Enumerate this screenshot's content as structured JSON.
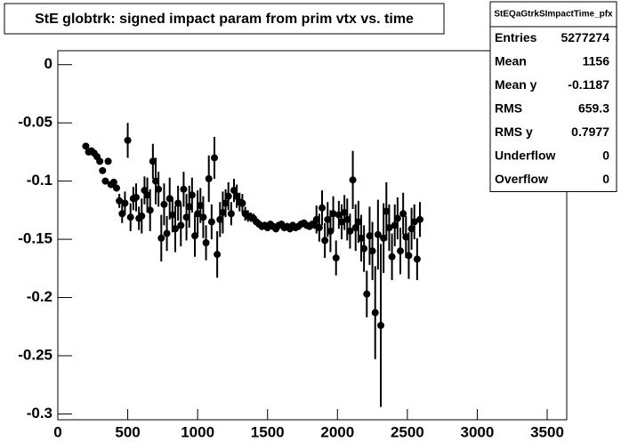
{
  "chart_data": {
    "type": "scatter",
    "title": "StE globtrk: signed impact param from prim vtx vs. time",
    "color": "#000000",
    "xlim": [
      0,
      3640
    ],
    "ylim": [
      -0.305,
      0.012
    ],
    "xticks": [
      0,
      500,
      1000,
      1500,
      2000,
      2500,
      3000,
      3500
    ],
    "yticks": [
      0,
      -0.05,
      -0.1,
      -0.15,
      -0.2,
      -0.25,
      -0.3
    ],
    "x": [
      200,
      220,
      240,
      260,
      280,
      300,
      320,
      340,
      360,
      380,
      400,
      420,
      440,
      460,
      480,
      500,
      520,
      540,
      560,
      580,
      600,
      620,
      640,
      660,
      680,
      700,
      720,
      740,
      760,
      780,
      800,
      820,
      840,
      860,
      880,
      900,
      920,
      940,
      960,
      980,
      1000,
      1020,
      1040,
      1060,
      1080,
      1100,
      1120,
      1140,
      1160,
      1180,
      1200,
      1220,
      1240,
      1260,
      1280,
      1300,
      1320,
      1340,
      1360,
      1380,
      1400,
      1420,
      1440,
      1460,
      1480,
      1500,
      1520,
      1540,
      1560,
      1580,
      1600,
      1620,
      1640,
      1660,
      1680,
      1700,
      1720,
      1740,
      1760,
      1780,
      1800,
      1820,
      1840,
      1850,
      1870,
      1890,
      1910,
      1930,
      1950,
      1970,
      1990,
      2010,
      2030,
      2050,
      2070,
      2090,
      2110,
      2130,
      2150,
      2170,
      2190,
      2210,
      2230,
      2250,
      2270,
      2290,
      2310,
      2330,
      2350,
      2370,
      2390,
      2410,
      2430,
      2450,
      2470,
      2490,
      2510,
      2530,
      2550,
      2570,
      2590
    ],
    "values": [
      -0.07,
      -0.075,
      -0.074,
      -0.076,
      -0.079,
      -0.083,
      -0.091,
      -0.1,
      -0.083,
      -0.103,
      -0.101,
      -0.106,
      -0.117,
      -0.128,
      -0.119,
      -0.065,
      -0.131,
      -0.115,
      -0.114,
      -0.132,
      -0.13,
      -0.108,
      -0.112,
      -0.125,
      -0.083,
      -0.1,
      -0.107,
      -0.149,
      -0.12,
      -0.145,
      -0.115,
      -0.129,
      -0.141,
      -0.119,
      -0.138,
      -0.107,
      -0.131,
      -0.122,
      -0.112,
      -0.147,
      -0.128,
      -0.121,
      -0.131,
      -0.153,
      -0.098,
      -0.135,
      -0.08,
      -0.163,
      -0.133,
      -0.127,
      -0.119,
      -0.113,
      -0.128,
      -0.108,
      -0.113,
      -0.118,
      -0.119,
      -0.128,
      -0.13,
      -0.131,
      -0.132,
      -0.135,
      -0.137,
      -0.139,
      -0.138,
      -0.14,
      -0.137,
      -0.139,
      -0.141,
      -0.138,
      -0.137,
      -0.14,
      -0.139,
      -0.141,
      -0.138,
      -0.14,
      -0.139,
      -0.137,
      -0.136,
      -0.138,
      -0.139,
      -0.137,
      -0.138,
      -0.133,
      -0.14,
      -0.123,
      -0.151,
      -0.133,
      -0.143,
      -0.128,
      -0.166,
      -0.129,
      -0.135,
      -0.127,
      -0.133,
      -0.143,
      -0.099,
      -0.14,
      -0.135,
      -0.149,
      -0.158,
      -0.197,
      -0.147,
      -0.16,
      -0.213,
      -0.146,
      -0.224,
      -0.149,
      -0.126,
      -0.14,
      -0.165,
      -0.138,
      -0.132,
      -0.16,
      -0.128,
      -0.148,
      -0.164,
      -0.141,
      -0.135,
      -0.167,
      -0.133
    ],
    "errors": [
      0.002,
      0.002,
      0.002,
      0.002,
      0.002,
      0.002,
      0.002,
      0.002,
      0.002,
      0.002,
      0.002,
      0.002,
      0.006,
      0.008,
      0.01,
      0.015,
      0.012,
      0.01,
      0.012,
      0.01,
      0.015,
      0.012,
      0.015,
      0.018,
      0.015,
      0.02,
      0.015,
      0.02,
      0.018,
      0.015,
      0.018,
      0.015,
      0.02,
      0.015,
      0.018,
      0.015,
      0.02,
      0.018,
      0.015,
      0.018,
      0.02,
      0.015,
      0.018,
      0.015,
      0.02,
      0.015,
      0.018,
      0.02,
      0.015,
      0.018,
      0.012,
      0.012,
      0.01,
      0.01,
      0.01,
      0.008,
      0.008,
      0.006,
      0.005,
      0.004,
      0.004,
      0.003,
      0.003,
      0.003,
      0.003,
      0.003,
      0.003,
      0.003,
      0.003,
      0.003,
      0.003,
      0.003,
      0.003,
      0.003,
      0.003,
      0.003,
      0.003,
      0.003,
      0.003,
      0.003,
      0.003,
      0.003,
      0.003,
      0.012,
      0.012,
      0.015,
      0.015,
      0.015,
      0.018,
      0.015,
      0.015,
      0.012,
      0.015,
      0.015,
      0.018,
      0.015,
      0.025,
      0.02,
      0.018,
      0.02,
      0.02,
      0.02,
      0.025,
      0.025,
      0.04,
      0.03,
      0.07,
      0.03,
      0.025,
      0.02,
      0.02,
      0.018,
      0.018,
      0.02,
      0.018,
      0.018,
      0.02,
      0.018,
      0.015,
      0.018,
      0.015
    ],
    "stats": {
      "title": "StEQaGtrkSImpactTime_pfx",
      "rows": [
        [
          "Entries",
          "5277274"
        ],
        [
          "Mean",
          "1156"
        ],
        [
          "Mean y",
          "-0.1187"
        ],
        [
          "RMS",
          "659.3"
        ],
        [
          "RMS y",
          "0.7977"
        ],
        [
          "Underflow",
          "0"
        ],
        [
          "Overflow",
          "0"
        ]
      ]
    }
  }
}
